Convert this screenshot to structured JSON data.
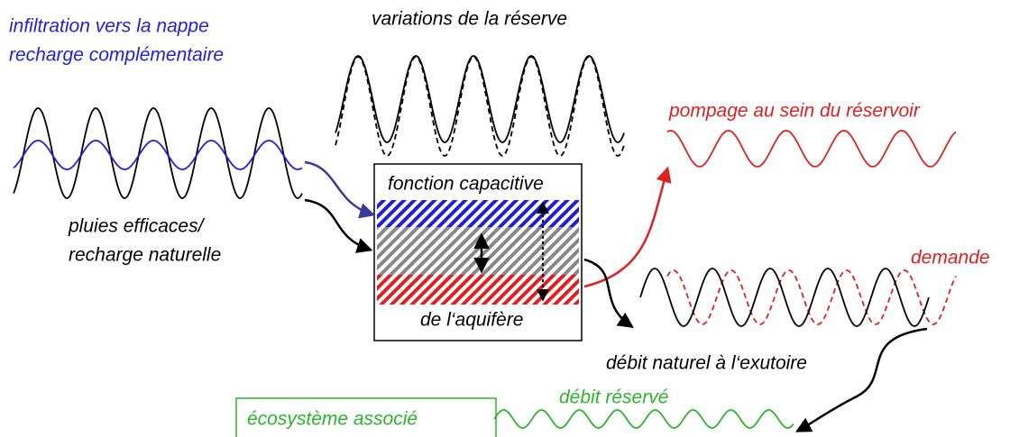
{
  "labels": {
    "infiltration": [
      "infiltration vers la nappe",
      "recharge complémentaire"
    ],
    "variations": "variations de la réserve",
    "pompage": "pompage au sein du réservoir",
    "fonction": "fonction capacitive",
    "pluies": [
      "pluies efficaces/",
      "recharge naturelle"
    ],
    "demande": "demande",
    "aquifere": "de l‘aquifère",
    "debit_naturel": "débit naturel à l‘exutoire",
    "debit_reserve": "débit réservé",
    "ecosysteme": "écosystème associé"
  }
}
